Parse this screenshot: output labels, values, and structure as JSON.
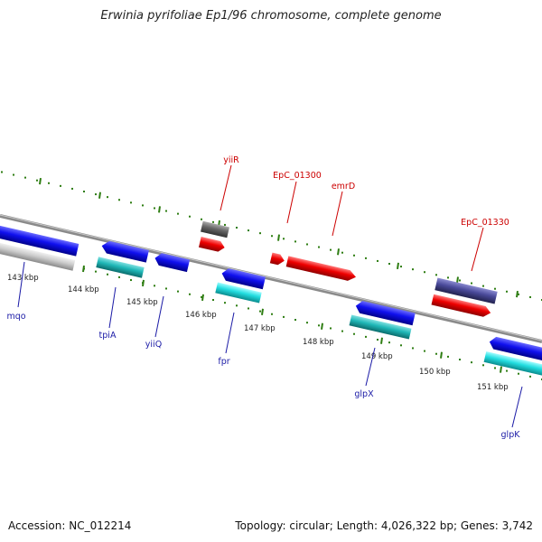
{
  "title": "Erwinia pyrifoliae Ep1/96 chromosome, complete genome",
  "footer": {
    "accession": "Accession: NC_012214",
    "summary": "Topology: circular; Length: 4,026,322 bp; Genes: 3,742"
  },
  "colors": {
    "label_red": "#cc0000",
    "label_blue": "#1a1aa6",
    "tick_green": "#2e7d12",
    "backbone": "#808080"
  },
  "scale": {
    "labels": [
      "143 kbp",
      "144 kbp",
      "145 kbp",
      "146 kbp",
      "147 kbp",
      "148 kbp",
      "149 kbp",
      "150 kbp",
      "151 kbp"
    ]
  },
  "genes_top": [
    {
      "name": "yiiR"
    },
    {
      "name": "EpC_01300"
    },
    {
      "name": "emrD"
    },
    {
      "name": "EpC_01330"
    }
  ],
  "genes_bottom": [
    {
      "name": "mqo"
    },
    {
      "name": "tpiA"
    },
    {
      "name": "yiiQ"
    },
    {
      "name": "fpr"
    },
    {
      "name": "glpX"
    },
    {
      "name": "glpK"
    }
  ]
}
